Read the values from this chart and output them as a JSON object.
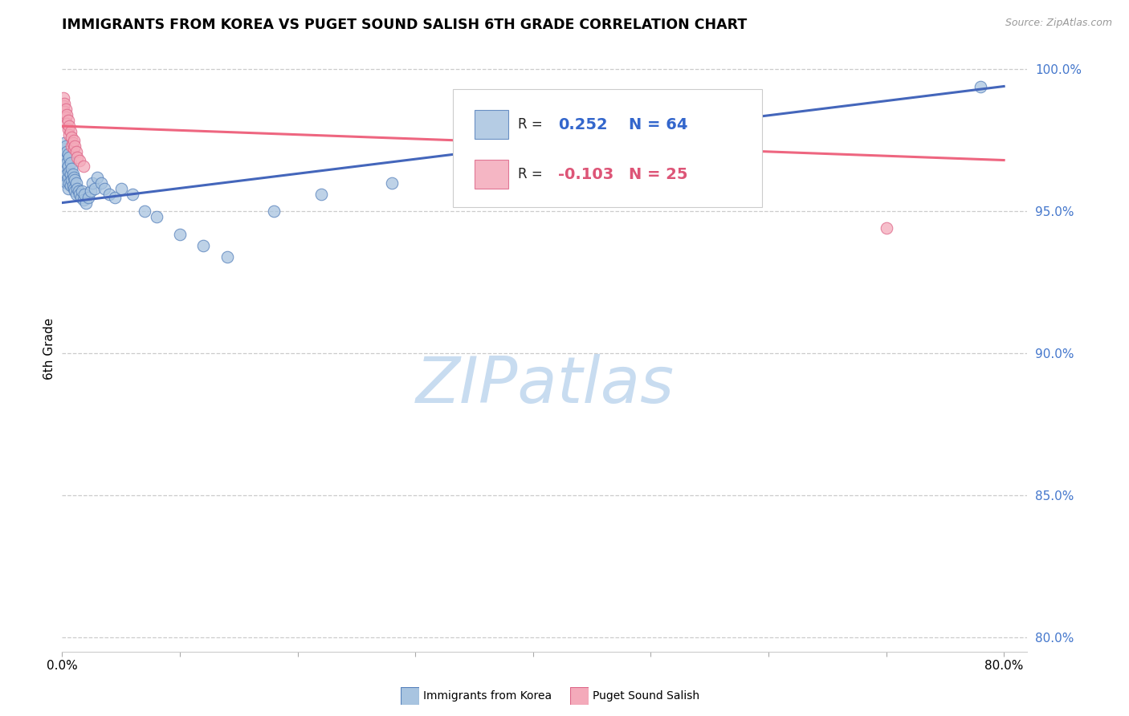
{
  "title": "IMMIGRANTS FROM KOREA VS PUGET SOUND SALISH 6TH GRADE CORRELATION CHART",
  "source": "Source: ZipAtlas.com",
  "ylabel": "6th Grade",
  "watermark": "ZIPatlas",
  "legend_blue_label": "Immigrants from Korea",
  "legend_pink_label": "Puget Sound Salish",
  "legend_blue_r_val": "0.252",
  "legend_blue_n": "N = 64",
  "legend_pink_r_val": "-0.103",
  "legend_pink_n": "N = 25",
  "blue_color": "#A8C4E0",
  "pink_color": "#F4AABA",
  "blue_edge_color": "#5580BB",
  "pink_edge_color": "#DD6688",
  "blue_line_color": "#4466BB",
  "pink_line_color": "#EE6680",
  "right_axis_color": "#4477CC",
  "ytick_vals": [
    0.8,
    0.85,
    0.9,
    0.95,
    1.0
  ],
  "blue_scatter_x": [
    0.001,
    0.001,
    0.002,
    0.002,
    0.002,
    0.003,
    0.003,
    0.003,
    0.003,
    0.004,
    0.004,
    0.004,
    0.004,
    0.005,
    0.005,
    0.005,
    0.005,
    0.006,
    0.006,
    0.006,
    0.007,
    0.007,
    0.007,
    0.008,
    0.008,
    0.009,
    0.009,
    0.01,
    0.01,
    0.011,
    0.011,
    0.012,
    0.012,
    0.013,
    0.014,
    0.015,
    0.016,
    0.017,
    0.018,
    0.019,
    0.02,
    0.022,
    0.024,
    0.026,
    0.028,
    0.03,
    0.033,
    0.036,
    0.04,
    0.045,
    0.05,
    0.06,
    0.07,
    0.08,
    0.1,
    0.12,
    0.14,
    0.18,
    0.22,
    0.28,
    0.35,
    0.45,
    0.55,
    0.78
  ],
  "blue_scatter_y": [
    0.972,
    0.969,
    0.974,
    0.97,
    0.966,
    0.973,
    0.969,
    0.965,
    0.961,
    0.971,
    0.967,
    0.963,
    0.96,
    0.97,
    0.966,
    0.962,
    0.958,
    0.969,
    0.964,
    0.96,
    0.967,
    0.963,
    0.959,
    0.965,
    0.961,
    0.963,
    0.959,
    0.962,
    0.958,
    0.961,
    0.957,
    0.96,
    0.956,
    0.958,
    0.957,
    0.956,
    0.955,
    0.957,
    0.954,
    0.956,
    0.953,
    0.955,
    0.957,
    0.96,
    0.958,
    0.962,
    0.96,
    0.958,
    0.956,
    0.955,
    0.958,
    0.956,
    0.95,
    0.948,
    0.942,
    0.938,
    0.934,
    0.95,
    0.956,
    0.96,
    0.965,
    0.966,
    0.97,
    0.994
  ],
  "pink_scatter_x": [
    0.001,
    0.001,
    0.002,
    0.002,
    0.003,
    0.003,
    0.004,
    0.004,
    0.005,
    0.005,
    0.006,
    0.006,
    0.007,
    0.008,
    0.008,
    0.009,
    0.01,
    0.01,
    0.011,
    0.012,
    0.013,
    0.015,
    0.018,
    0.42,
    0.7
  ],
  "pink_scatter_y": [
    0.99,
    0.987,
    0.988,
    0.985,
    0.986,
    0.983,
    0.984,
    0.981,
    0.982,
    0.979,
    0.98,
    0.977,
    0.978,
    0.976,
    0.973,
    0.974,
    0.972,
    0.975,
    0.973,
    0.971,
    0.969,
    0.968,
    0.966,
    0.966,
    0.944
  ],
  "blue_line_x": [
    0.0,
    0.8
  ],
  "blue_line_y": [
    0.953,
    0.994
  ],
  "pink_line_x": [
    0.0,
    0.8
  ],
  "pink_line_y": [
    0.98,
    0.968
  ],
  "xlim": [
    0.0,
    0.82
  ],
  "ylim": [
    0.795,
    1.008
  ],
  "marker_size": 110
}
